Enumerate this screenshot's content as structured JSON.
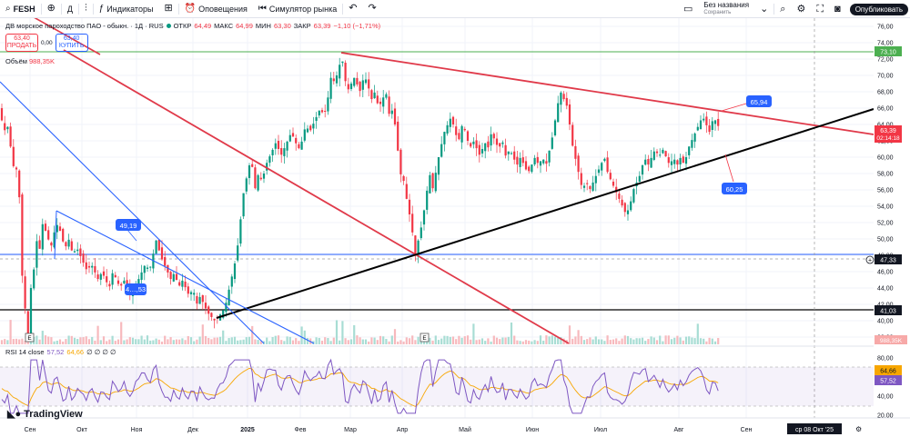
{
  "toolbar": {
    "symbol": "FESH",
    "interval": "Д",
    "indicators": "Индикаторы",
    "alerts": "Оповещения",
    "replay": "Симулятор рынка",
    "save_title": "Без названия",
    "save_sub": "Сохранить",
    "publish": "Опубликовать"
  },
  "legend": {
    "name": "ДВ морское пароходство ПАО - обыкн. · 1Д · RUS",
    "open_label": "ОТКР",
    "open": "64,49",
    "high_label": "МАКС",
    "high": "64,99",
    "low_label": "МИН",
    "low": "63,30",
    "close_label": "ЗАКР",
    "close": "63,39",
    "change": "−1,10 (−1,71%)",
    "sell_price": "63,40",
    "sell_label": "ПРОДАТЬ",
    "spread": "0,00",
    "buy_price": "63,40",
    "buy_label": "КУПИТЬ",
    "volume_label": "Объём",
    "volume": "988,35K",
    "rsi_label": "RSI 14 close",
    "rsi_value": "57,52",
    "rsi_ma": "64,66",
    "rsi_extra": "∅ ∅ ∅ ∅"
  },
  "branding": {
    "logo": "TradingView"
  },
  "colors": {
    "up": "#089981",
    "down": "#f23645",
    "line_red": "#e03a4a",
    "line_blue": "#2962ff",
    "rsi": "#7e57c2",
    "rsi_ma": "#f7a600"
  },
  "chart_data": {
    "type": "candlestick",
    "y_axis": {
      "range": [
        36,
        77
      ],
      "ticks": [
        "76,00",
        "74,00",
        "72,00",
        "70,00",
        "68,00",
        "66,00",
        "64,00",
        "62,00",
        "60,00",
        "58,00",
        "56,00",
        "54,00",
        "52,00",
        "50,00",
        "48,00",
        "46,00",
        "44,00",
        "42,00",
        "40,00",
        "38,00"
      ]
    },
    "rsi_axis": {
      "range": [
        15,
        85
      ],
      "ticks": [
        "80,00",
        "40,00",
        "20,00"
      ],
      "bands": [
        70,
        30
      ]
    },
    "x_axis": {
      "labels": [
        "Сен",
        "Окт",
        "Ноя",
        "Дек",
        "2025",
        "Фев",
        "Мар",
        "Апр",
        "Май",
        "Июн",
        "Июл",
        "Авг",
        "Сен"
      ],
      "cursor_label": "ср 08 Окт '25"
    },
    "price_labels": {
      "top_level": "73,10",
      "current": "63,39",
      "countdown": "02:14:18",
      "mid_level": "47,33",
      "low_level": "41,03",
      "volume": "988,35K",
      "rsi_ma": "64,66",
      "rsi": "57,52"
    },
    "annotations": [
      {
        "text": "49,19"
      },
      {
        "text": "4…,53"
      },
      {
        "text": "65,94"
      },
      {
        "text": "60,25"
      }
    ],
    "event_markers": [
      "E",
      "E"
    ],
    "horizontal_levels": [
      73.1,
      47.33,
      41.03
    ],
    "price_path": [
      [
        0,
        66
      ],
      [
        4,
        63
      ],
      [
        8,
        64
      ],
      [
        12,
        61
      ],
      [
        16,
        58
      ],
      [
        20,
        59
      ],
      [
        24,
        46
      ],
      [
        28,
        41
      ],
      [
        31,
        38
      ],
      [
        34,
        44
      ],
      [
        37,
        46
      ],
      [
        40,
        50
      ],
      [
        43,
        48
      ],
      [
        46,
        52
      ],
      [
        50,
        51
      ],
      [
        53,
        50
      ],
      [
        56,
        49
      ],
      [
        60,
        51
      ],
      [
        64,
        52
      ],
      [
        68,
        50
      ],
      [
        72,
        49
      ],
      [
        76,
        50
      ],
      [
        80,
        48
      ],
      [
        84,
        49
      ],
      [
        88,
        48
      ],
      [
        92,
        47
      ],
      [
        96,
        46
      ],
      [
        100,
        47
      ],
      [
        104,
        46
      ],
      [
        108,
        45
      ],
      [
        112,
        46
      ],
      [
        116,
        45
      ],
      [
        120,
        44
      ],
      [
        124,
        46
      ],
      [
        128,
        45
      ],
      [
        132,
        44
      ],
      [
        136,
        45
      ],
      [
        140,
        44
      ],
      [
        144,
        43
      ],
      [
        148,
        44
      ],
      [
        152,
        45
      ],
      [
        156,
        46
      ],
      [
        160,
        47
      ],
      [
        164,
        46
      ],
      [
        168,
        48
      ],
      [
        172,
        50
      ],
      [
        176,
        48
      ],
      [
        180,
        47
      ],
      [
        184,
        46
      ],
      [
        188,
        45
      ],
      [
        192,
        46
      ],
      [
        196,
        44
      ],
      [
        200,
        45
      ],
      [
        204,
        44
      ],
      [
        208,
        43
      ],
      [
        212,
        44
      ],
      [
        216,
        42
      ],
      [
        220,
        43
      ],
      [
        224,
        42
      ],
      [
        228,
        41
      ],
      [
        232,
        40.5
      ],
      [
        236,
        40
      ],
      [
        240,
        40.5
      ],
      [
        244,
        41
      ],
      [
        248,
        42
      ],
      [
        252,
        44
      ],
      [
        256,
        46
      ],
      [
        260,
        48
      ],
      [
        264,
        52
      ],
      [
        268,
        56
      ],
      [
        272,
        58
      ],
      [
        276,
        60
      ],
      [
        280,
        56
      ],
      [
        284,
        58
      ],
      [
        288,
        57
      ],
      [
        292,
        59
      ],
      [
        296,
        60
      ],
      [
        300,
        61
      ],
      [
        304,
        62
      ],
      [
        308,
        60
      ],
      [
        312,
        61
      ],
      [
        316,
        62
      ],
      [
        320,
        63
      ],
      [
        324,
        62
      ],
      [
        328,
        61
      ],
      [
        332,
        62
      ],
      [
        336,
        64
      ],
      [
        340,
        63
      ],
      [
        344,
        64
      ],
      [
        348,
        65
      ],
      [
        352,
        66
      ],
      [
        356,
        65
      ],
      [
        360,
        67
      ],
      [
        364,
        70
      ],
      [
        368,
        69
      ],
      [
        372,
        71
      ],
      [
        376,
        72
      ],
      [
        380,
        69
      ],
      [
        384,
        68
      ],
      [
        388,
        70
      ],
      [
        392,
        69
      ],
      [
        396,
        68
      ],
      [
        400,
        70
      ],
      [
        404,
        69
      ],
      [
        408,
        67
      ],
      [
        412,
        68
      ],
      [
        416,
        66
      ],
      [
        420,
        67
      ],
      [
        424,
        68
      ],
      [
        428,
        65
      ],
      [
        432,
        66
      ],
      [
        436,
        62
      ],
      [
        440,
        58
      ],
      [
        444,
        57
      ],
      [
        448,
        54
      ],
      [
        452,
        52
      ],
      [
        456,
        48
      ],
      [
        460,
        50
      ],
      [
        464,
        52
      ],
      [
        468,
        55
      ],
      [
        472,
        58
      ],
      [
        476,
        56
      ],
      [
        480,
        59
      ],
      [
        484,
        61
      ],
      [
        488,
        63
      ],
      [
        492,
        64
      ],
      [
        496,
        65
      ],
      [
        500,
        63
      ],
      [
        504,
        62
      ],
      [
        508,
        64
      ],
      [
        512,
        63
      ],
      [
        516,
        61
      ],
      [
        520,
        62
      ],
      [
        524,
        61
      ],
      [
        528,
        60
      ],
      [
        532,
        62
      ],
      [
        536,
        61
      ],
      [
        540,
        63
      ],
      [
        544,
        62
      ],
      [
        548,
        61
      ],
      [
        552,
        62
      ],
      [
        556,
        60
      ],
      [
        560,
        61
      ],
      [
        564,
        60
      ],
      [
        568,
        59
      ],
      [
        572,
        60
      ],
      [
        576,
        59
      ],
      [
        580,
        58
      ],
      [
        584,
        59
      ],
      [
        588,
        60
      ],
      [
        592,
        59
      ],
      [
        596,
        60
      ],
      [
        600,
        59
      ],
      [
        604,
        61
      ],
      [
        608,
        63
      ],
      [
        612,
        66
      ],
      [
        616,
        68
      ],
      [
        620,
        67
      ],
      [
        624,
        66
      ],
      [
        628,
        62
      ],
      [
        632,
        60
      ],
      [
        636,
        58
      ],
      [
        640,
        56
      ],
      [
        644,
        57
      ],
      [
        648,
        56
      ],
      [
        652,
        57
      ],
      [
        656,
        58
      ],
      [
        660,
        59
      ],
      [
        664,
        60
      ],
      [
        668,
        58
      ],
      [
        672,
        57
      ],
      [
        676,
        56
      ],
      [
        680,
        55
      ],
      [
        684,
        54
      ],
      [
        688,
        53
      ],
      [
        692,
        54
      ],
      [
        696,
        56
      ],
      [
        700,
        57
      ],
      [
        704,
        58
      ],
      [
        708,
        60
      ],
      [
        712,
        59
      ],
      [
        716,
        60
      ],
      [
        720,
        61
      ],
      [
        724,
        60
      ],
      [
        728,
        61
      ],
      [
        732,
        60
      ],
      [
        736,
        59
      ],
      [
        740,
        60
      ],
      [
        744,
        59
      ],
      [
        748,
        60
      ],
      [
        752,
        59
      ],
      [
        756,
        61
      ],
      [
        760,
        62
      ],
      [
        764,
        63
      ],
      [
        768,
        64
      ],
      [
        772,
        65
      ],
      [
        776,
        64
      ],
      [
        780,
        63
      ],
      [
        784,
        65
      ],
      [
        788,
        64
      ],
      [
        792,
        63.39
      ]
    ]
  }
}
